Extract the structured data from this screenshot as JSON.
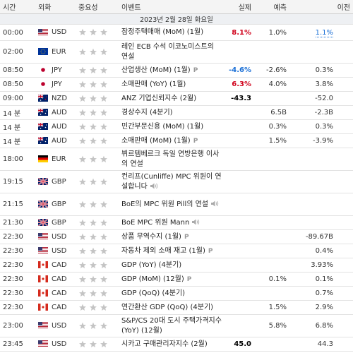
{
  "header": {
    "columns": [
      "시간",
      "외화",
      "중요성",
      "이벤트",
      "실제",
      "예측",
      "이전"
    ]
  },
  "date_header": "2023년 2월 28일 화요일",
  "rows": [
    {
      "time": "00:00",
      "flag": "us",
      "currency": "USD",
      "event": "잠정주택매매 (MoM) (1월)",
      "actual": "8.1%",
      "actual_color": "#d0021b",
      "forecast": "1.0%",
      "previous": "1.1%",
      "previous_revised": true
    },
    {
      "time": "02:00",
      "flag": "eu",
      "currency": "EUR",
      "event": "레인 ECB 수석 이코노미스트의 연설",
      "tall": true
    },
    {
      "time": "08:50",
      "flag": "jp",
      "currency": "JPY",
      "event": "산업생산 (MoM) (1월)",
      "badge": "P",
      "actual": "-4.6%",
      "actual_color": "#1a6fd6",
      "forecast": "-2.6%",
      "previous": "0.3%"
    },
    {
      "time": "08:50",
      "flag": "jp",
      "currency": "JPY",
      "event": "소매판매 (YoY) (1월)",
      "actual": "6.3%",
      "actual_color": "#d0021b",
      "forecast": "4.0%",
      "previous": "3.8%"
    },
    {
      "time": "09:00",
      "flag": "nz",
      "currency": "NZD",
      "event": "ANZ 기업신뢰지수 (2월)",
      "actual": "-43.3",
      "actual_color": "#000000",
      "previous": "-52.0"
    },
    {
      "time": "14 분",
      "flag": "au",
      "currency": "AUD",
      "event": "경상수지 (4분기)",
      "forecast": "6.5B",
      "previous": "-2.3B"
    },
    {
      "time": "14 분",
      "flag": "au",
      "currency": "AUD",
      "event": "민간부문신용 (MoM) (1월)",
      "forecast": "0.3%",
      "previous": "0.3%"
    },
    {
      "time": "14 분",
      "flag": "au",
      "currency": "AUD",
      "event": "소매판매 (MoM) (1월)",
      "badge": "P",
      "forecast": "1.5%",
      "previous": "-3.9%"
    },
    {
      "time": "18:00",
      "flag": "de",
      "currency": "EUR",
      "event": "뷔르템베르크 독일 연방은행 이사의 연설",
      "tall": true
    },
    {
      "time": "19:15",
      "flag": "gb",
      "currency": "GBP",
      "event": "컨리프(Cunliffe) MPC 위원이 연설합니다",
      "audio": true,
      "tall": true
    },
    {
      "time": "21:15",
      "flag": "gb",
      "currency": "GBP",
      "event": "BoE의 MPC 위원 Pill의 연설",
      "audio": true,
      "tall": true
    },
    {
      "time": "21:30",
      "flag": "gb",
      "currency": "GBP",
      "event": "BoE MPC 위원 Mann",
      "audio": true
    },
    {
      "time": "22:30",
      "flag": "us",
      "currency": "USD",
      "event": "상품 무역수지 (1월)",
      "badge": "P",
      "previous": "-89.67B"
    },
    {
      "time": "22:30",
      "flag": "us",
      "currency": "USD",
      "event": "자동차 제외 소매 재고 (1월)",
      "badge": "P",
      "previous": "0.4%"
    },
    {
      "time": "22:30",
      "flag": "ca",
      "currency": "CAD",
      "event": "GDP (YoY) (4분기)",
      "previous": "3.93%"
    },
    {
      "time": "22:30",
      "flag": "ca",
      "currency": "CAD",
      "event": "GDP (MoM) (12월)",
      "badge": "P",
      "forecast": "0.1%",
      "previous": "0.1%"
    },
    {
      "time": "22:30",
      "flag": "ca",
      "currency": "CAD",
      "event": "GDP (QoQ) (4분기)",
      "previous": "0.7%"
    },
    {
      "time": "22:30",
      "flag": "ca",
      "currency": "CAD",
      "event": "연간환산 GDP (QoQ) (4분기)",
      "forecast": "1.5%",
      "previous": "2.9%"
    },
    {
      "time": "23:00",
      "flag": "us",
      "currency": "USD",
      "event": "S&P/CS 20대 도시 주택가격지수 (YoY) (12월)",
      "forecast": "5.8%",
      "previous": "6.8%",
      "tall": true
    },
    {
      "time": "23:45",
      "flag": "us",
      "currency": "USD",
      "event": "시카고 구매관리자지수 (2월)",
      "actual": "45.0",
      "actual_color": "#000000",
      "previous": "44.3"
    }
  ]
}
